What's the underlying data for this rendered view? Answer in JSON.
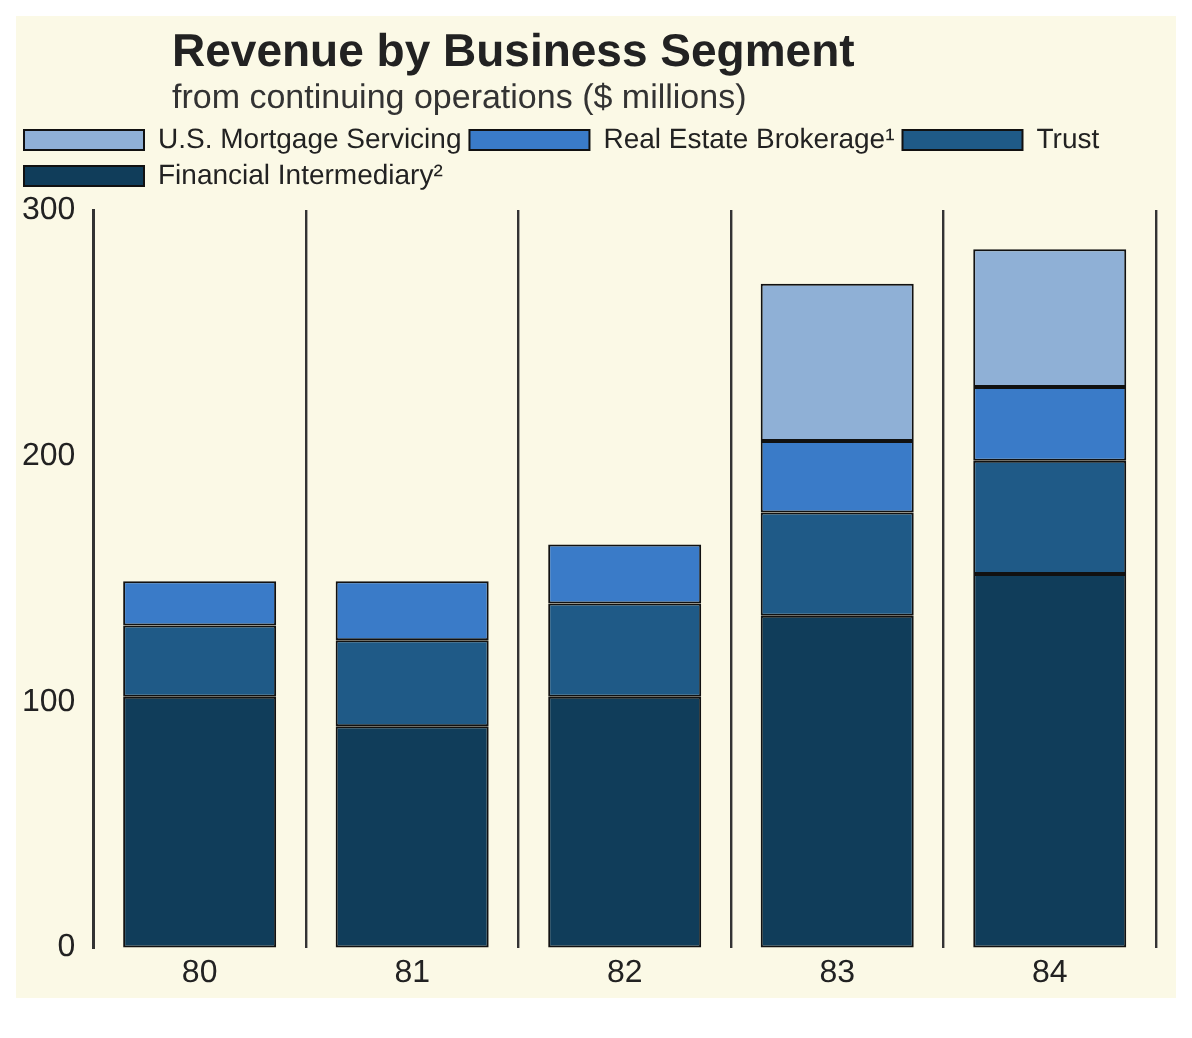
{
  "chart_data": {
    "type": "bar",
    "title": "Revenue by Business Segment",
    "subtitle": "from continuing operations ($ millions)",
    "categories": [
      "80",
      "81",
      "82",
      "83",
      "84"
    ],
    "stacked": true,
    "series": [
      {
        "name": "Financial Intermediary²",
        "color": "#103d5a",
        "values": [
          102,
          90,
          102,
          135,
          152
        ]
      },
      {
        "name": "Trust",
        "color": "#1f5a87",
        "values": [
          29,
          35,
          38,
          42,
          46
        ]
      },
      {
        "name": "Real Estate Brokerage¹",
        "color": "#3a7bc8",
        "values": [
          18,
          24,
          24,
          29,
          30
        ]
      },
      {
        "name": "U.S. Mortgage Servicing",
        "color": "#8fb0d6",
        "values": [
          null,
          null,
          null,
          64,
          56
        ]
      }
    ],
    "ylim": [
      0,
      300
    ],
    "yticks": [
      0,
      100,
      200,
      300
    ],
    "grid": "x",
    "legend": "top left"
  }
}
